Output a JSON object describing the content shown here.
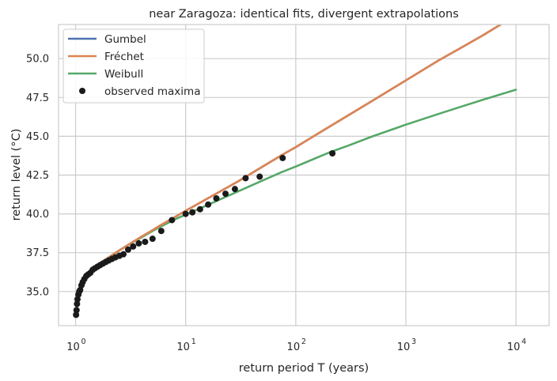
{
  "chart_data": {
    "type": "line",
    "title": "near Zaragoza: identical fits, divergent extrapolations",
    "xlabel": "return period T (years)",
    "ylabel": "return level (°C)",
    "xscale": "log",
    "xlim": [
      0.7,
      20000
    ],
    "ylim": [
      32.8,
      52.2
    ],
    "grid": true,
    "legend_position": "upper left",
    "x_ticks": [
      {
        "value": 1,
        "base": "10",
        "exp": "0"
      },
      {
        "value": 10,
        "base": "10",
        "exp": "1"
      },
      {
        "value": 100,
        "base": "10",
        "exp": "2"
      },
      {
        "value": 1000,
        "base": "10",
        "exp": "3"
      },
      {
        "value": 10000,
        "base": "10",
        "exp": "4"
      }
    ],
    "y_ticks": [
      {
        "value": 35.0,
        "label": "35.0"
      },
      {
        "value": 37.5,
        "label": "37.5"
      },
      {
        "value": 40.0,
        "label": "40.0"
      },
      {
        "value": 42.5,
        "label": "42.5"
      },
      {
        "value": 45.0,
        "label": "45.0"
      },
      {
        "value": 47.5,
        "label": "47.5"
      },
      {
        "value": 50.0,
        "label": "50.0"
      }
    ],
    "series": [
      {
        "name": "Gumbel",
        "kind": "line",
        "color": "#4c72b0",
        "x": [
          1.1,
          1.3,
          1.6,
          2,
          2.5,
          3,
          4,
          5,
          6,
          8,
          10,
          15,
          20,
          30,
          50,
          75,
          100,
          200,
          300,
          500,
          1000,
          2000,
          3000,
          5000,
          10000
        ],
        "y": [
          35.3,
          36.1,
          36.75,
          37.2,
          37.65,
          38.0,
          38.55,
          38.95,
          39.3,
          39.8,
          40.2,
          40.9,
          41.4,
          42.1,
          43.05,
          43.8,
          44.3,
          45.6,
          46.35,
          47.3,
          48.6,
          49.9,
          50.6,
          51.5,
          52.8
        ]
      },
      {
        "name": "Fréchet",
        "kind": "line",
        "color": "#dd8452",
        "x": [
          1.1,
          1.3,
          1.6,
          2,
          2.5,
          3,
          4,
          5,
          6,
          8,
          10,
          15,
          20,
          30,
          50,
          75,
          100,
          200,
          300,
          500,
          1000,
          2000,
          3000,
          5000,
          10000
        ],
        "y": [
          35.3,
          36.1,
          36.75,
          37.2,
          37.65,
          38.0,
          38.55,
          38.95,
          39.3,
          39.8,
          40.2,
          40.9,
          41.4,
          42.1,
          43.05,
          43.8,
          44.3,
          45.6,
          46.35,
          47.3,
          48.6,
          49.9,
          50.6,
          51.5,
          52.8
        ]
      },
      {
        "name": "Weibull",
        "kind": "line",
        "color": "#55a868",
        "x": [
          1.1,
          1.3,
          1.6,
          2,
          2.5,
          3,
          4,
          5,
          6,
          8,
          10,
          15,
          20,
          30,
          50,
          75,
          100,
          200,
          300,
          500,
          1000,
          2000,
          3000,
          5000,
          10000
        ],
        "y": [
          35.3,
          36.1,
          36.75,
          37.2,
          37.65,
          38.0,
          38.5,
          38.9,
          39.2,
          39.65,
          39.95,
          40.5,
          40.9,
          41.45,
          42.15,
          42.7,
          43.05,
          43.95,
          44.4,
          45.0,
          45.75,
          46.45,
          46.85,
          47.35,
          48.0
        ]
      },
      {
        "name": "observed maxima",
        "kind": "scatter",
        "color": "#1a1a1a",
        "x": [
          1.01,
          1.02,
          1.03,
          1.04,
          1.06,
          1.08,
          1.1,
          1.13,
          1.16,
          1.2,
          1.25,
          1.3,
          1.36,
          1.43,
          1.5,
          1.58,
          1.67,
          1.77,
          1.88,
          2.0,
          2.14,
          2.3,
          2.5,
          2.72,
          3.0,
          3.33,
          3.75,
          4.28,
          5.0,
          6.0,
          7.5,
          10.0,
          11.5,
          13.5,
          16.0,
          19.0,
          23.0,
          28.0,
          35.0,
          47.0,
          76.0,
          215.0
        ],
        "y": [
          33.5,
          33.8,
          34.2,
          34.5,
          34.8,
          35.0,
          35.1,
          35.4,
          35.6,
          35.8,
          36.0,
          36.1,
          36.2,
          36.4,
          36.5,
          36.6,
          36.7,
          36.8,
          36.9,
          37.0,
          37.1,
          37.2,
          37.3,
          37.4,
          37.7,
          37.9,
          38.1,
          38.2,
          38.4,
          38.9,
          39.6,
          40.0,
          40.1,
          40.3,
          40.6,
          41.0,
          41.3,
          41.6,
          42.3,
          42.4,
          43.6,
          43.9
        ]
      }
    ]
  }
}
